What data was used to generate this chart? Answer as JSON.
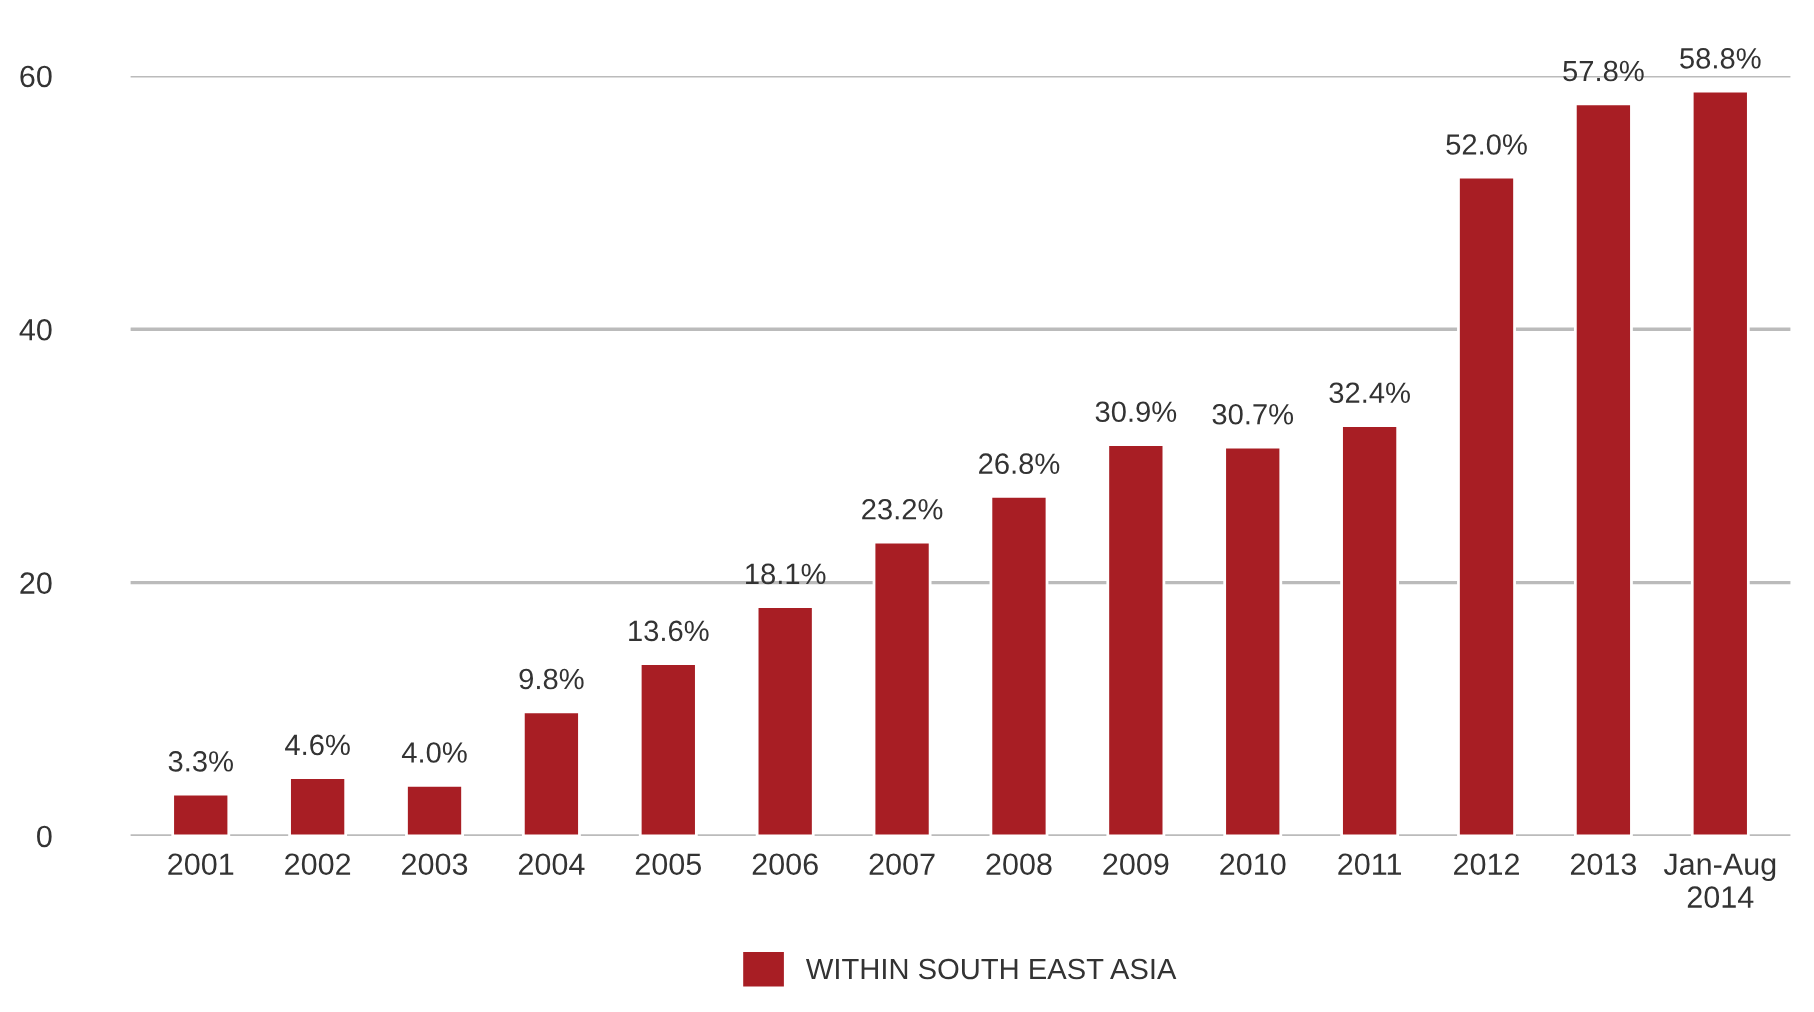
{
  "chart_data": {
    "type": "bar",
    "categories": [
      "2001",
      "2002",
      "2003",
      "2004",
      "2005",
      "2006",
      "2007",
      "2008",
      "2009",
      "2010",
      "2011",
      "2012",
      "2013",
      "Jan-Aug\n2014"
    ],
    "series": [
      {
        "name": "WITHIN SOUTH EAST ASIA",
        "color": "#a81e24",
        "values": [
          3.3,
          4.6,
          4.0,
          9.8,
          13.6,
          18.1,
          23.2,
          26.8,
          30.9,
          30.7,
          32.4,
          52.0,
          57.8,
          58.8
        ],
        "value_labels": [
          "3.3%",
          "4.6%",
          "4.0%",
          "9.8%",
          "13.6%",
          "18.1%",
          "23.2%",
          "26.8%",
          "30.9%",
          "30.7%",
          "32.4%",
          "52.0%",
          "57.8%",
          "58.8%"
        ]
      }
    ],
    "ylim": [
      0,
      60
    ],
    "yticks": [
      0,
      20,
      40,
      60
    ],
    "grid": "y",
    "legend": "bottom"
  }
}
